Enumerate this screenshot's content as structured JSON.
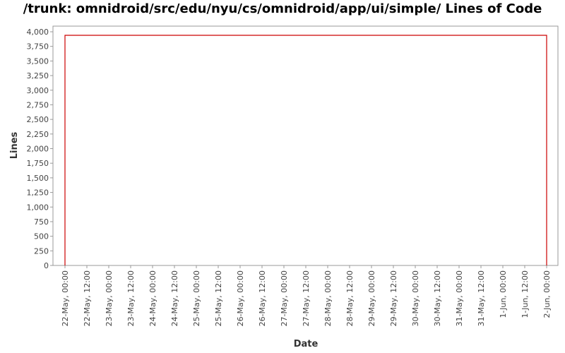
{
  "chart_data": {
    "type": "line",
    "title": "/trunk: omnidroid/src/edu/nyu/cs/omnidroid/app/ui/simple/ Lines of Code",
    "xlabel": "Date",
    "ylabel": "Lines",
    "ylim": [
      0,
      4000
    ],
    "y_ticks": [
      0,
      250,
      500,
      750,
      1000,
      1250,
      1500,
      1750,
      2000,
      2250,
      2500,
      2750,
      3000,
      3250,
      3500,
      3750,
      4000
    ],
    "y_tick_labels": [
      "0",
      "250",
      "500",
      "750",
      "1,000",
      "1,250",
      "1,500",
      "1,750",
      "2,000",
      "2,250",
      "2,500",
      "2,750",
      "3,000",
      "3,250",
      "3,500",
      "3,750",
      "4,000"
    ],
    "x_tick_labels": [
      "22-May, 00:00",
      "22-May, 12:00",
      "23-May, 00:00",
      "23-May, 12:00",
      "24-May, 00:00",
      "24-May, 12:00",
      "25-May, 00:00",
      "25-May, 12:00",
      "26-May, 00:00",
      "26-May, 12:00",
      "27-May, 00:00",
      "27-May, 12:00",
      "28-May, 00:00",
      "28-May, 12:00",
      "29-May, 00:00",
      "29-May, 12:00",
      "30-May, 00:00",
      "30-May, 12:00",
      "31-May, 00:00",
      "31-May, 12:00",
      "1-Jun, 00:00",
      "1-Jun, 12:00",
      "2-Jun, 00:00"
    ],
    "series": [
      {
        "color": "#cc0000",
        "points": [
          {
            "x": "22-May, 00:00",
            "y": 0
          },
          {
            "x": "22-May, 00:00",
            "y": 3940
          },
          {
            "x": "2-Jun, 00:00",
            "y": 3940
          },
          {
            "x": "2-Jun, 00:00",
            "y": 0
          }
        ]
      }
    ],
    "grid": false,
    "legend": "none"
  }
}
